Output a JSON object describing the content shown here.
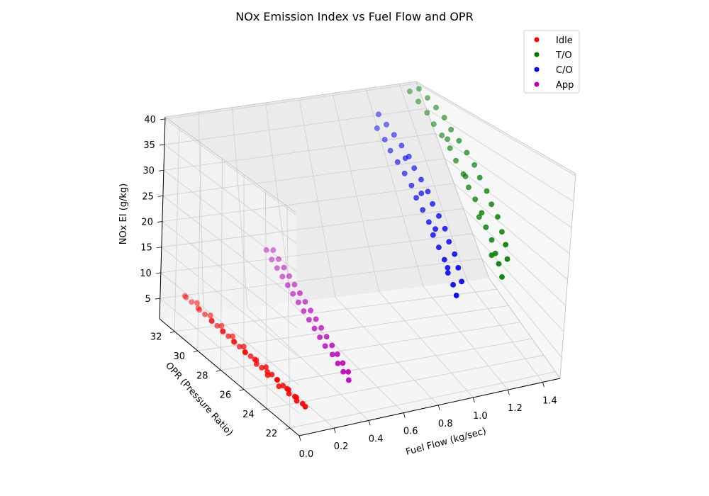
{
  "chart_data": {
    "type": "scatter",
    "title": "NOx Emission Index vs Fuel Flow and OPR",
    "xlabel": "Fuel Flow (kg/sec)",
    "ylabel": "OPR (Pressure Ratio)",
    "zlabel": "NOx EI (g/kg)",
    "x_ticks": [
      "0.0",
      "0.2",
      "0.4",
      "0.6",
      "0.8",
      "1.0",
      "1.2",
      "1.4"
    ],
    "y_ticks": [
      "22",
      "24",
      "26",
      "28",
      "30",
      "32"
    ],
    "z_ticks": [
      "5",
      "10",
      "15",
      "20",
      "25",
      "30",
      "35",
      "40"
    ],
    "xlim": [
      0.0,
      1.5
    ],
    "ylim": [
      21.2,
      33.3
    ],
    "zlim": [
      1.0,
      40.4
    ],
    "grid": true,
    "legend_position": "top-right",
    "series": [
      {
        "name": "Idle",
        "color": "#ff0000",
        "points": [
          [
            0.1,
            22.2,
            3.8
          ],
          [
            0.11,
            22.6,
            3.6
          ],
          [
            0.09,
            22.8,
            3.9
          ],
          [
            0.1,
            23.0,
            4.1
          ],
          [
            0.11,
            23.3,
            3.7
          ],
          [
            0.09,
            23.5,
            4.0
          ],
          [
            0.1,
            23.7,
            4.3
          ],
          [
            0.11,
            24.0,
            3.9
          ],
          [
            0.1,
            24.2,
            4.2
          ],
          [
            0.09,
            24.4,
            3.8
          ],
          [
            0.1,
            24.7,
            4.4
          ],
          [
            0.11,
            24.9,
            4.0
          ],
          [
            0.1,
            25.2,
            4.5
          ],
          [
            0.09,
            25.4,
            4.1
          ],
          [
            0.1,
            25.6,
            4.3
          ],
          [
            0.11,
            25.9,
            4.6
          ],
          [
            0.1,
            26.1,
            4.2
          ],
          [
            0.09,
            26.4,
            4.4
          ],
          [
            0.1,
            26.6,
            4.7
          ],
          [
            0.11,
            26.9,
            4.3
          ],
          [
            0.1,
            27.1,
            4.6
          ],
          [
            0.09,
            27.4,
            4.8
          ],
          [
            0.1,
            27.6,
            4.5
          ],
          [
            0.11,
            27.9,
            4.9
          ],
          [
            0.1,
            28.1,
            4.6
          ],
          [
            0.09,
            28.4,
            5.0
          ],
          [
            0.1,
            28.6,
            4.7
          ],
          [
            0.11,
            28.9,
            5.1
          ],
          [
            0.1,
            29.1,
            4.8
          ],
          [
            0.09,
            29.4,
            5.2
          ],
          [
            0.1,
            29.6,
            4.9
          ],
          [
            0.11,
            29.9,
            5.3
          ],
          [
            0.1,
            30.1,
            5.0
          ],
          [
            0.09,
            30.4,
            5.4
          ],
          [
            0.1,
            30.6,
            5.1
          ],
          [
            0.11,
            30.9,
            5.5
          ],
          [
            0.1,
            31.2,
            5.2
          ],
          [
            0.09,
            31.5,
            5.6
          ],
          [
            0.1,
            31.8,
            5.3
          ],
          [
            0.11,
            32.1,
            5.7
          ],
          [
            0.1,
            32.4,
            5.4
          ],
          [
            0.09,
            32.7,
            5.8
          ],
          [
            0.1,
            33.0,
            5.5
          ]
        ]
      },
      {
        "name": "T/O",
        "color": "#008000",
        "points": [
          [
            1.2,
            22.4,
            20.5
          ],
          [
            1.25,
            22.8,
            23.0
          ],
          [
            1.22,
            23.1,
            21.8
          ],
          [
            1.28,
            23.5,
            24.5
          ],
          [
            1.24,
            23.8,
            22.6
          ],
          [
            1.3,
            24.2,
            25.8
          ],
          [
            1.26,
            24.5,
            24.0
          ],
          [
            1.32,
            24.9,
            27.5
          ],
          [
            1.27,
            25.2,
            25.3
          ],
          [
            1.33,
            25.6,
            28.8
          ],
          [
            1.29,
            25.9,
            26.9
          ],
          [
            1.35,
            26.3,
            30.2
          ],
          [
            1.3,
            26.6,
            28.4
          ],
          [
            1.36,
            27.0,
            31.7
          ],
          [
            1.31,
            27.3,
            29.6
          ],
          [
            1.38,
            27.7,
            33.0
          ],
          [
            1.33,
            28.0,
            31.0
          ],
          [
            1.39,
            28.4,
            34.3
          ],
          [
            1.34,
            28.7,
            32.5
          ],
          [
            1.4,
            29.1,
            35.5
          ],
          [
            1.36,
            29.4,
            33.8
          ],
          [
            1.41,
            29.8,
            36.6
          ],
          [
            1.37,
            30.1,
            35.2
          ],
          [
            1.43,
            30.5,
            37.8
          ],
          [
            1.38,
            30.8,
            36.3
          ],
          [
            1.44,
            31.2,
            38.7
          ],
          [
            1.4,
            31.5,
            37.4
          ],
          [
            1.45,
            31.9,
            39.5
          ],
          [
            1.41,
            32.2,
            38.5
          ],
          [
            1.46,
            32.6,
            40.2
          ],
          [
            1.42,
            32.9,
            39.4
          ],
          [
            1.23,
            24.0,
            22.0
          ],
          [
            1.28,
            26.0,
            26.0
          ],
          [
            1.34,
            28.0,
            30.5
          ],
          [
            1.39,
            30.0,
            34.5
          ]
        ]
      },
      {
        "name": "C/O",
        "color": "#0000ff",
        "points": [
          [
            0.95,
            22.4,
            18.5
          ],
          [
            1.0,
            22.8,
            20.2
          ],
          [
            0.97,
            23.1,
            19.3
          ],
          [
            1.02,
            23.5,
            21.6
          ],
          [
            0.98,
            23.8,
            20.4
          ],
          [
            1.04,
            24.2,
            23.0
          ],
          [
            1.0,
            24.5,
            21.7
          ],
          [
            1.05,
            24.9,
            24.2
          ],
          [
            1.01,
            25.2,
            22.9
          ],
          [
            1.07,
            25.6,
            25.5
          ],
          [
            1.02,
            25.9,
            24.1
          ],
          [
            1.08,
            26.3,
            26.8
          ],
          [
            1.04,
            26.6,
            25.4
          ],
          [
            1.09,
            27.0,
            28.0
          ],
          [
            1.05,
            27.3,
            26.6
          ],
          [
            1.11,
            27.7,
            29.2
          ],
          [
            1.06,
            28.0,
            27.8
          ],
          [
            1.12,
            28.4,
            30.4
          ],
          [
            1.08,
            28.7,
            29.0
          ],
          [
            1.13,
            29.1,
            31.5
          ],
          [
            1.09,
            29.4,
            30.2
          ],
          [
            1.15,
            29.8,
            32.6
          ],
          [
            1.1,
            30.1,
            31.3
          ],
          [
            1.16,
            30.5,
            33.6
          ],
          [
            1.11,
            30.8,
            32.4
          ],
          [
            1.17,
            31.2,
            34.6
          ],
          [
            1.13,
            31.5,
            33.4
          ],
          [
            1.18,
            31.9,
            35.5
          ],
          [
            1.14,
            32.2,
            34.5
          ],
          [
            1.19,
            32.6,
            36.4
          ],
          [
            0.99,
            24.0,
            21.0
          ],
          [
            1.04,
            26.0,
            25.0
          ],
          [
            1.09,
            28.0,
            28.5
          ],
          [
            1.14,
            30.0,
            32.0
          ]
        ]
      },
      {
        "name": "App",
        "color": "#bf00bf",
        "points": [
          [
            0.35,
            22.3,
            6.8
          ],
          [
            0.37,
            22.7,
            7.5
          ],
          [
            0.36,
            23.0,
            7.1
          ],
          [
            0.38,
            23.4,
            7.9
          ],
          [
            0.37,
            23.7,
            7.4
          ],
          [
            0.39,
            24.1,
            8.3
          ],
          [
            0.38,
            24.4,
            7.8
          ],
          [
            0.4,
            24.8,
            8.7
          ],
          [
            0.38,
            25.1,
            8.2
          ],
          [
            0.41,
            25.5,
            9.1
          ],
          [
            0.39,
            25.8,
            8.6
          ],
          [
            0.42,
            26.2,
            9.5
          ],
          [
            0.4,
            26.5,
            9.0
          ],
          [
            0.43,
            26.9,
            9.9
          ],
          [
            0.41,
            27.2,
            9.4
          ],
          [
            0.44,
            27.6,
            10.3
          ],
          [
            0.42,
            27.9,
            9.8
          ],
          [
            0.45,
            28.3,
            10.7
          ],
          [
            0.43,
            28.6,
            10.2
          ],
          [
            0.46,
            29.0,
            11.1
          ],
          [
            0.44,
            29.3,
            10.6
          ],
          [
            0.47,
            29.7,
            11.5
          ],
          [
            0.45,
            30.0,
            11.0
          ],
          [
            0.48,
            30.4,
            11.9
          ],
          [
            0.46,
            30.7,
            11.4
          ],
          [
            0.49,
            31.1,
            12.3
          ],
          [
            0.47,
            31.4,
            11.8
          ],
          [
            0.5,
            31.8,
            12.7
          ],
          [
            0.48,
            32.1,
            12.2
          ],
          [
            0.51,
            32.5,
            13.2
          ],
          [
            0.49,
            32.8,
            12.8
          ]
        ]
      }
    ]
  }
}
